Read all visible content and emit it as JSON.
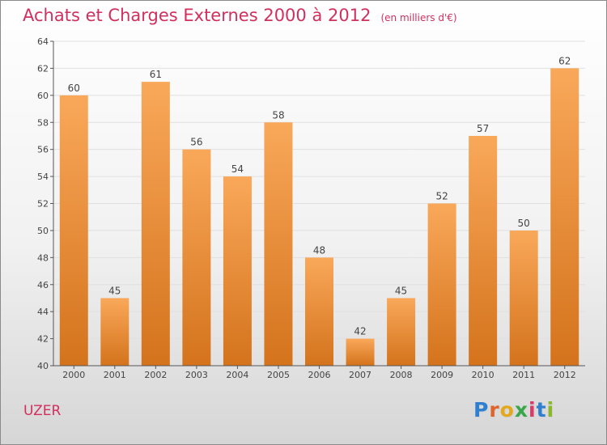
{
  "header": {
    "title": "Achats et Charges Externes 2000 à 2012",
    "subtitle": "(en milliers d'€)"
  },
  "place_name": "UZER",
  "logo": {
    "text": "Proxiti",
    "colors": [
      "#2f7fd0",
      "#e0632a",
      "#e3a81b",
      "#3aa64a",
      "#d93a6a",
      "#2f7fd0",
      "#8bb72a"
    ]
  },
  "colors": {
    "title": "#d1305e",
    "bar_light": "#f9a85a",
    "bar_dark": "#d4731c",
    "axis": "#555555",
    "grid": "#e0e0e0"
  },
  "chart_data": {
    "type": "bar",
    "title": "Achats et Charges Externes 2000 à 2012",
    "subtitle": "(en milliers d'€)",
    "categories": [
      "2000",
      "2001",
      "2002",
      "2003",
      "2004",
      "2005",
      "2006",
      "2007",
      "2008",
      "2009",
      "2010",
      "2011",
      "2012"
    ],
    "values": [
      60,
      45,
      61,
      56,
      54,
      58,
      48,
      42,
      45,
      52,
      57,
      50,
      62
    ],
    "ylim": [
      40,
      64
    ],
    "yticks": [
      40,
      42,
      44,
      46,
      48,
      50,
      52,
      54,
      56,
      58,
      60,
      62,
      64
    ],
    "grid": true,
    "data_labels": true
  }
}
